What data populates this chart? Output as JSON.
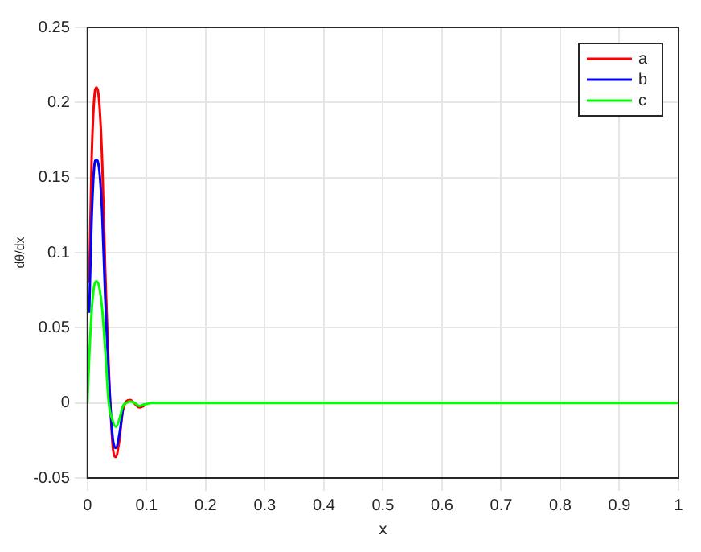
{
  "chart_data": {
    "type": "line",
    "xlabel": "x",
    "ylabel": "dθ/dx",
    "x": [
      0,
      0.003,
      0.007,
      0.011,
      0.015,
      0.02,
      0.025,
      0.03,
      0.036,
      0.042,
      0.048,
      0.054,
      0.06,
      0.066,
      0.072,
      0.08,
      0.088,
      0.096,
      0.11,
      0.15,
      0.2,
      0.3,
      0.5,
      1.0
    ],
    "series": [
      {
        "name": "a",
        "color": "#ff0000",
        "x": [
          0.003,
          0.007,
          0.011,
          0.015,
          0.02,
          0.025,
          0.03,
          0.042,
          0.048,
          0.054,
          0.06,
          0.072,
          0.088,
          0.096
        ],
        "values": [
          0.08,
          0.16,
          0.2,
          0.21,
          0.2,
          0.16,
          0.09,
          -0.025,
          -0.036,
          -0.025,
          -0.005,
          0.002,
          -0.003,
          -0.002
        ]
      },
      {
        "name": "b",
        "color": "#0000ff",
        "x": [
          0.003,
          0.007,
          0.011,
          0.015,
          0.02,
          0.025,
          0.03,
          0.042,
          0.048,
          0.054,
          0.06
        ],
        "values": [
          0.06,
          0.12,
          0.155,
          0.162,
          0.155,
          0.125,
          0.07,
          -0.02,
          -0.03,
          -0.021,
          -0.004
        ]
      },
      {
        "name": "c",
        "color": "#00ff00",
        "values": [
          0,
          0.03,
          0.06,
          0.077,
          0.081,
          0.077,
          0.062,
          0.035,
          0,
          -0.011,
          -0.016,
          -0.011,
          -0.002,
          0,
          0.001,
          0,
          -0.002,
          -0.001,
          0,
          0,
          0,
          0,
          0,
          0
        ]
      }
    ],
    "xlim": [
      0,
      1
    ],
    "xticks": [
      0,
      0.1,
      0.2,
      0.3,
      0.4,
      0.5,
      0.6,
      0.7,
      0.8,
      0.9,
      1
    ],
    "ylim": [
      -0.05,
      0.25
    ],
    "yticks": [
      -0.05,
      0,
      0.05,
      0.1,
      0.15,
      0.2,
      0.25
    ],
    "grid": true,
    "legend": "top right",
    "marker": "none",
    "line_style": "solid"
  }
}
